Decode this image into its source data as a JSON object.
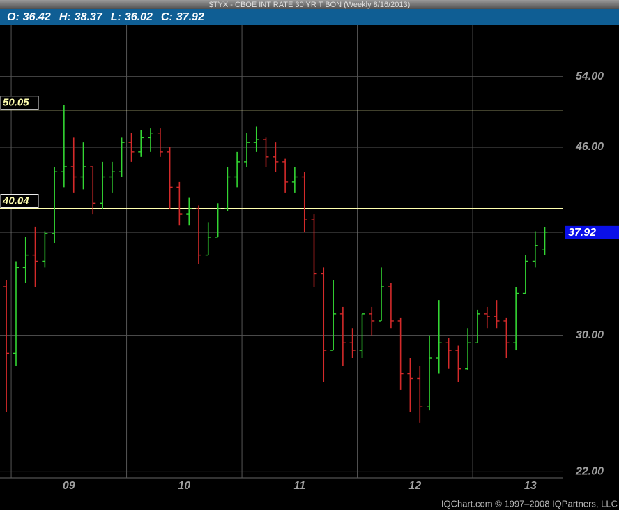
{
  "chart_data": {
    "type": "ohlc",
    "title": "$TYX - CBOE INT RATE 30 YR T BON (Weekly 8/16/2013)",
    "header_labels": [
      "O:",
      "H:",
      "L:",
      "C:"
    ],
    "x": [
      2008.958,
      2009.042,
      2009.125,
      2009.208,
      2009.292,
      2009.375,
      2009.458,
      2009.542,
      2009.625,
      2009.708,
      2009.792,
      2009.875,
      2009.958,
      2010.042,
      2010.125,
      2010.208,
      2010.292,
      2010.375,
      2010.458,
      2010.542,
      2010.625,
      2010.708,
      2010.792,
      2010.875,
      2010.958,
      2011.042,
      2011.125,
      2011.208,
      2011.292,
      2011.375,
      2011.458,
      2011.542,
      2011.625,
      2011.708,
      2011.792,
      2011.875,
      2011.958,
      2012.042,
      2012.125,
      2012.208,
      2012.292,
      2012.375,
      2012.458,
      2012.542,
      2012.625,
      2012.708,
      2012.792,
      2012.875,
      2012.958,
      2013.042,
      2013.125,
      2013.208,
      2013.292,
      2013.375,
      2013.458,
      2013.542,
      2013.625
    ],
    "open": [
      33.5,
      28.8,
      35,
      36,
      35.5,
      37.8,
      43.5,
      44,
      43,
      44,
      40.5,
      43,
      43.5,
      46.5,
      45.5,
      47,
      47.5,
      45.5,
      42,
      39.5,
      40,
      36,
      37.5,
      40,
      43,
      44.5,
      46.5,
      46.8,
      45,
      44.5,
      42.5,
      43,
      39,
      34.5,
      29,
      31.5,
      29.5,
      29,
      31.5,
      31,
      33.5,
      31,
      27.5,
      27.2,
      25.5,
      28.5,
      29.5,
      29,
      27.8,
      29.5,
      31.5,
      31.3,
      31,
      29.5,
      33,
      35.5,
      36.42
    ],
    "high": [
      34,
      35.5,
      37.5,
      38.4,
      38,
      44,
      50.6,
      47,
      46.5,
      44,
      44.5,
      44.5,
      47,
      47.5,
      47.8,
      48,
      48,
      46,
      42.5,
      41,
      40.3,
      38.8,
      40.5,
      44,
      45.5,
      47.5,
      48.2,
      47,
      46.5,
      44.8,
      44,
      43.5,
      39.5,
      35,
      34,
      32,
      30.5,
      31.5,
      32,
      35,
      33.8,
      31.2,
      28.5,
      28,
      30,
      32.5,
      29.8,
      29.3,
      30.5,
      31.8,
      32,
      32.5,
      31.2,
      33.5,
      36,
      38,
      38.37
    ],
    "low": [
      25.2,
      28,
      33.8,
      33.5,
      35,
      37,
      42,
      41.5,
      41.8,
      39.5,
      40,
      41.5,
      43,
      44.5,
      45,
      45.5,
      45,
      40,
      38.5,
      38.5,
      35.3,
      36,
      37.5,
      39.8,
      42,
      44,
      45.5,
      44,
      43.5,
      41.5,
      41.5,
      37.9,
      33.5,
      27,
      29,
      28,
      28.5,
      28.5,
      30,
      31,
      30.5,
      26.5,
      25.2,
      24.6,
      25.3,
      27.5,
      27.8,
      27,
      27.7,
      29.5,
      30.5,
      30.5,
      28.5,
      29,
      33,
      35,
      36.02
    ],
    "close": [
      28.8,
      35,
      36,
      35.5,
      37.8,
      43.5,
      44,
      43,
      44,
      40.5,
      43,
      43.5,
      46.5,
      45.5,
      47,
      47.5,
      45.5,
      42,
      39.5,
      40,
      36,
      37.5,
      40,
      43,
      44.5,
      46.5,
      46.8,
      45,
      44.5,
      42.5,
      43,
      39,
      34.5,
      29,
      31.5,
      29.5,
      29,
      31.5,
      31,
      33.5,
      31,
      27.5,
      27.2,
      25.5,
      28.5,
      29.5,
      29,
      27.8,
      29.5,
      31.5,
      31.3,
      31,
      29.5,
      33,
      35.5,
      36.8,
      37.92
    ],
    "up_color": "#33d633",
    "down_color": "#d42a2a",
    "xlim": [
      2008.903,
      2013.785
    ],
    "xticks": [
      {
        "value": 2009,
        "label": "09"
      },
      {
        "value": 2010,
        "label": "10"
      },
      {
        "value": 2011,
        "label": "11"
      },
      {
        "value": 2012,
        "label": "12"
      },
      {
        "value": 2013,
        "label": "13"
      }
    ],
    "ylim": [
      21.7,
      60.7
    ],
    "yticks": [
      {
        "value": 22,
        "label": "22.00"
      },
      {
        "value": 30,
        "label": "30.00"
      },
      {
        "value": 46,
        "label": "46.00"
      },
      {
        "value": 54,
        "label": "54.00"
      }
    ],
    "log_scale": true,
    "grid": true,
    "levels": [
      50.05,
      40.04
    ],
    "level_color": "#ffffb0",
    "last_price_color": "#0a10e8"
  },
  "footer": "IQChart.com © 1997–2008 IQPartners, LLC"
}
